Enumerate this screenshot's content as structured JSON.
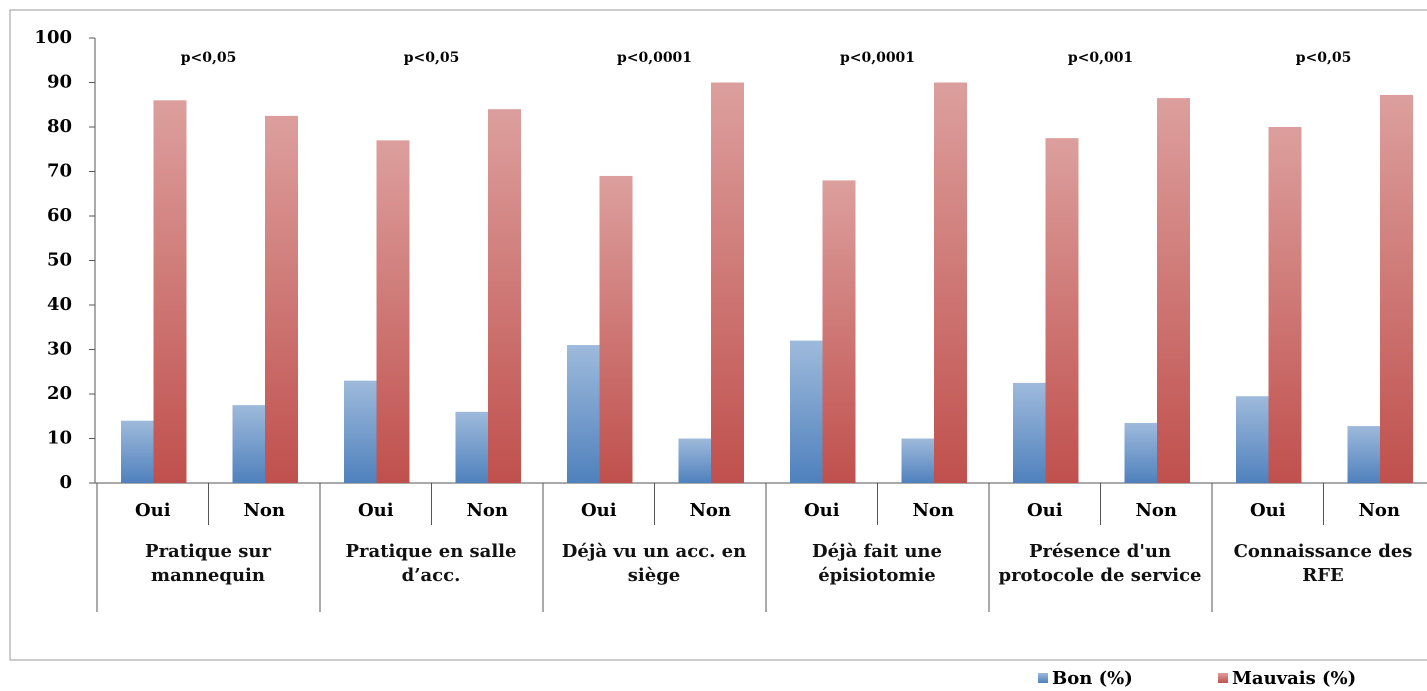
{
  "chart_data": {
    "type": "bar",
    "categories": [
      "Oui",
      "Non",
      "Oui",
      "Non",
      "Oui",
      "Non",
      "Oui",
      "Non",
      "Oui",
      "Non",
      "Oui",
      "Non"
    ],
    "groups": [
      "Pratique sur mannequin",
      "Pratique en salle d’acc.",
      "Déjà vu un acc. en siège",
      "Déjà fait une épisiotomie",
      "Présence d'un protocole de service",
      "Connaissance des RFE"
    ],
    "annotations": [
      "p<0,05",
      "p<0,05",
      "p<0,0001",
      "p<0,0001",
      "p<0,001",
      "p<0,05"
    ],
    "series": [
      {
        "name": "Bon (%)",
        "color": "#4f81bd",
        "values": [
          14,
          17.5,
          23,
          16,
          31,
          10,
          32,
          10,
          22.5,
          13.5,
          19.5,
          12.8
        ]
      },
      {
        "name": "Mauvais (%)",
        "color": "#c0504d",
        "values": [
          86,
          82.5,
          77,
          84,
          69,
          90,
          68,
          90,
          77.5,
          86.5,
          80,
          87.2
        ]
      }
    ],
    "ylim": [
      0,
      100
    ],
    "yticks": [
      0,
      10,
      20,
      30,
      40,
      50,
      60,
      70,
      80,
      90,
      100
    ],
    "grid": false,
    "legend": "bottom-right"
  }
}
